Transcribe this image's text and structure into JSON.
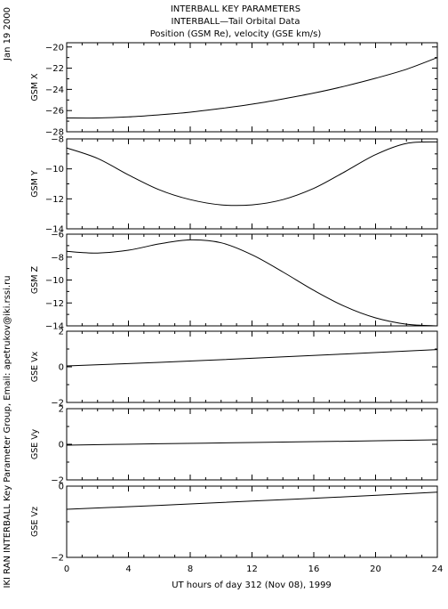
{
  "header": {
    "line1": "INTERBALL KEY PARAMETERS",
    "line2": "INTERBALL—Tail Orbital Data",
    "line3": "Position (GSM Re), velocity (GSE km/s)"
  },
  "side_date": "Jan 19 2000",
  "side_credit": "IKI RAN INTERBALL Key Parameter Group, Email: apetrukov@iki.rssi.ru",
  "chart_data": {
    "type": "line",
    "xlabel": "UT hours of day 312 (Nov 08), 1999",
    "xlim": [
      0,
      24
    ],
    "xticks": [
      0,
      4,
      8,
      12,
      16,
      20,
      24
    ],
    "xtick_labels": [
      "0",
      "4",
      "8",
      "12",
      "16",
      "20",
      "24"
    ],
    "panels": [
      {
        "ylabel": "GSM X",
        "ylim": [
          -28,
          -19.6
        ],
        "yticks": [
          -28,
          -26,
          -24,
          -22,
          -20
        ],
        "ytick_labels": [
          "−28",
          "−26",
          "−24",
          "−22",
          "−20"
        ],
        "x": [
          0,
          2,
          4,
          6,
          8,
          10,
          12,
          14,
          16,
          18,
          20,
          22,
          24
        ],
        "y": [
          -26.7,
          -26.7,
          -26.6,
          -26.4,
          -26.15,
          -25.8,
          -25.4,
          -24.9,
          -24.35,
          -23.7,
          -22.95,
          -22.1,
          -21.0
        ]
      },
      {
        "ylabel": "GSM Y",
        "ylim": [
          -14,
          -8
        ],
        "yticks": [
          -14,
          -12,
          -10,
          -8
        ],
        "ytick_labels": [
          "−14",
          "−12",
          "−10",
          "−8"
        ],
        "x": [
          0,
          2,
          4,
          6,
          8,
          10,
          12,
          14,
          16,
          18,
          20,
          22,
          24
        ],
        "y": [
          -8.6,
          -9.3,
          -10.4,
          -11.4,
          -12.05,
          -12.4,
          -12.4,
          -12.05,
          -11.3,
          -10.2,
          -9.05,
          -8.3,
          -8.2
        ]
      },
      {
        "ylabel": "GSM Z",
        "ylim": [
          -14,
          -6
        ],
        "yticks": [
          -14,
          -12,
          -10,
          -8,
          -6
        ],
        "ytick_labels": [
          "−14",
          "−12",
          "−10",
          "−8",
          "−6"
        ],
        "x": [
          0,
          2,
          4,
          6,
          8,
          10,
          12,
          14,
          16,
          18,
          20,
          22,
          24
        ],
        "y": [
          -7.5,
          -7.65,
          -7.4,
          -6.85,
          -6.5,
          -6.75,
          -7.8,
          -9.3,
          -10.9,
          -12.3,
          -13.3,
          -13.85,
          -14.0
        ]
      },
      {
        "ylabel": "GSE Vx",
        "ylim": [
          -2,
          2
        ],
        "yticks": [
          -2,
          0,
          2
        ],
        "ytick_labels": [
          "−2",
          "0",
          "2"
        ],
        "x": [
          0,
          6,
          12,
          18,
          24
        ],
        "y": [
          0.05,
          0.25,
          0.48,
          0.72,
          0.97
        ]
      },
      {
        "ylabel": "GSE Vy",
        "ylim": [
          -2,
          2
        ],
        "yticks": [
          -2,
          0,
          2
        ],
        "ytick_labels": [
          "−2",
          "0",
          "2"
        ],
        "x": [
          0,
          6,
          12,
          18,
          24
        ],
        "y": [
          -0.05,
          0.03,
          0.1,
          0.17,
          0.25
        ]
      },
      {
        "ylabel": "GSE Vz",
        "ylim": [
          -2,
          0
        ],
        "yticks": [
          -2,
          0
        ],
        "ytick_labels": [
          "−2",
          "0"
        ],
        "x": [
          0,
          6,
          12,
          18,
          24
        ],
        "y": [
          -0.65,
          -0.54,
          -0.42,
          -0.3,
          -0.17
        ]
      }
    ]
  }
}
